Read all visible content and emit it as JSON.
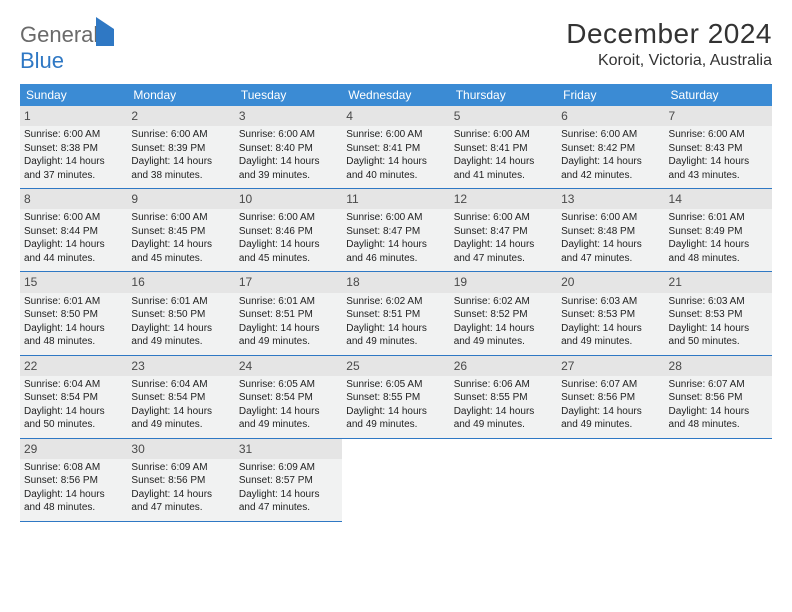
{
  "logo": {
    "part1": "General",
    "part2": "Blue"
  },
  "title": "December 2024",
  "location": "Koroit, Victoria, Australia",
  "headerColor": "#3b8bd4",
  "borderColor": "#2f78c4",
  "cellBg": "#f1f2f2",
  "dayNumBg": "#e5e5e5",
  "dow": [
    "Sunday",
    "Monday",
    "Tuesday",
    "Wednesday",
    "Thursday",
    "Friday",
    "Saturday"
  ],
  "weeks": [
    [
      {
        "n": "1",
        "sr": "Sunrise: 6:00 AM",
        "ss": "Sunset: 8:38 PM",
        "d1": "Daylight: 14 hours",
        "d2": "and 37 minutes."
      },
      {
        "n": "2",
        "sr": "Sunrise: 6:00 AM",
        "ss": "Sunset: 8:39 PM",
        "d1": "Daylight: 14 hours",
        "d2": "and 38 minutes."
      },
      {
        "n": "3",
        "sr": "Sunrise: 6:00 AM",
        "ss": "Sunset: 8:40 PM",
        "d1": "Daylight: 14 hours",
        "d2": "and 39 minutes."
      },
      {
        "n": "4",
        "sr": "Sunrise: 6:00 AM",
        "ss": "Sunset: 8:41 PM",
        "d1": "Daylight: 14 hours",
        "d2": "and 40 minutes."
      },
      {
        "n": "5",
        "sr": "Sunrise: 6:00 AM",
        "ss": "Sunset: 8:41 PM",
        "d1": "Daylight: 14 hours",
        "d2": "and 41 minutes."
      },
      {
        "n": "6",
        "sr": "Sunrise: 6:00 AM",
        "ss": "Sunset: 8:42 PM",
        "d1": "Daylight: 14 hours",
        "d2": "and 42 minutes."
      },
      {
        "n": "7",
        "sr": "Sunrise: 6:00 AM",
        "ss": "Sunset: 8:43 PM",
        "d1": "Daylight: 14 hours",
        "d2": "and 43 minutes."
      }
    ],
    [
      {
        "n": "8",
        "sr": "Sunrise: 6:00 AM",
        "ss": "Sunset: 8:44 PM",
        "d1": "Daylight: 14 hours",
        "d2": "and 44 minutes."
      },
      {
        "n": "9",
        "sr": "Sunrise: 6:00 AM",
        "ss": "Sunset: 8:45 PM",
        "d1": "Daylight: 14 hours",
        "d2": "and 45 minutes."
      },
      {
        "n": "10",
        "sr": "Sunrise: 6:00 AM",
        "ss": "Sunset: 8:46 PM",
        "d1": "Daylight: 14 hours",
        "d2": "and 45 minutes."
      },
      {
        "n": "11",
        "sr": "Sunrise: 6:00 AM",
        "ss": "Sunset: 8:47 PM",
        "d1": "Daylight: 14 hours",
        "d2": "and 46 minutes."
      },
      {
        "n": "12",
        "sr": "Sunrise: 6:00 AM",
        "ss": "Sunset: 8:47 PM",
        "d1": "Daylight: 14 hours",
        "d2": "and 47 minutes."
      },
      {
        "n": "13",
        "sr": "Sunrise: 6:00 AM",
        "ss": "Sunset: 8:48 PM",
        "d1": "Daylight: 14 hours",
        "d2": "and 47 minutes."
      },
      {
        "n": "14",
        "sr": "Sunrise: 6:01 AM",
        "ss": "Sunset: 8:49 PM",
        "d1": "Daylight: 14 hours",
        "d2": "and 48 minutes."
      }
    ],
    [
      {
        "n": "15",
        "sr": "Sunrise: 6:01 AM",
        "ss": "Sunset: 8:50 PM",
        "d1": "Daylight: 14 hours",
        "d2": "and 48 minutes."
      },
      {
        "n": "16",
        "sr": "Sunrise: 6:01 AM",
        "ss": "Sunset: 8:50 PM",
        "d1": "Daylight: 14 hours",
        "d2": "and 49 minutes."
      },
      {
        "n": "17",
        "sr": "Sunrise: 6:01 AM",
        "ss": "Sunset: 8:51 PM",
        "d1": "Daylight: 14 hours",
        "d2": "and 49 minutes."
      },
      {
        "n": "18",
        "sr": "Sunrise: 6:02 AM",
        "ss": "Sunset: 8:51 PM",
        "d1": "Daylight: 14 hours",
        "d2": "and 49 minutes."
      },
      {
        "n": "19",
        "sr": "Sunrise: 6:02 AM",
        "ss": "Sunset: 8:52 PM",
        "d1": "Daylight: 14 hours",
        "d2": "and 49 minutes."
      },
      {
        "n": "20",
        "sr": "Sunrise: 6:03 AM",
        "ss": "Sunset: 8:53 PM",
        "d1": "Daylight: 14 hours",
        "d2": "and 49 minutes."
      },
      {
        "n": "21",
        "sr": "Sunrise: 6:03 AM",
        "ss": "Sunset: 8:53 PM",
        "d1": "Daylight: 14 hours",
        "d2": "and 50 minutes."
      }
    ],
    [
      {
        "n": "22",
        "sr": "Sunrise: 6:04 AM",
        "ss": "Sunset: 8:54 PM",
        "d1": "Daylight: 14 hours",
        "d2": "and 50 minutes."
      },
      {
        "n": "23",
        "sr": "Sunrise: 6:04 AM",
        "ss": "Sunset: 8:54 PM",
        "d1": "Daylight: 14 hours",
        "d2": "and 49 minutes."
      },
      {
        "n": "24",
        "sr": "Sunrise: 6:05 AM",
        "ss": "Sunset: 8:54 PM",
        "d1": "Daylight: 14 hours",
        "d2": "and 49 minutes."
      },
      {
        "n": "25",
        "sr": "Sunrise: 6:05 AM",
        "ss": "Sunset: 8:55 PM",
        "d1": "Daylight: 14 hours",
        "d2": "and 49 minutes."
      },
      {
        "n": "26",
        "sr": "Sunrise: 6:06 AM",
        "ss": "Sunset: 8:55 PM",
        "d1": "Daylight: 14 hours",
        "d2": "and 49 minutes."
      },
      {
        "n": "27",
        "sr": "Sunrise: 6:07 AM",
        "ss": "Sunset: 8:56 PM",
        "d1": "Daylight: 14 hours",
        "d2": "and 49 minutes."
      },
      {
        "n": "28",
        "sr": "Sunrise: 6:07 AM",
        "ss": "Sunset: 8:56 PM",
        "d1": "Daylight: 14 hours",
        "d2": "and 48 minutes."
      }
    ],
    [
      {
        "n": "29",
        "sr": "Sunrise: 6:08 AM",
        "ss": "Sunset: 8:56 PM",
        "d1": "Daylight: 14 hours",
        "d2": "and 48 minutes."
      },
      {
        "n": "30",
        "sr": "Sunrise: 6:09 AM",
        "ss": "Sunset: 8:56 PM",
        "d1": "Daylight: 14 hours",
        "d2": "and 47 minutes."
      },
      {
        "n": "31",
        "sr": "Sunrise: 6:09 AM",
        "ss": "Sunset: 8:57 PM",
        "d1": "Daylight: 14 hours",
        "d2": "and 47 minutes."
      },
      null,
      null,
      null,
      null
    ]
  ]
}
